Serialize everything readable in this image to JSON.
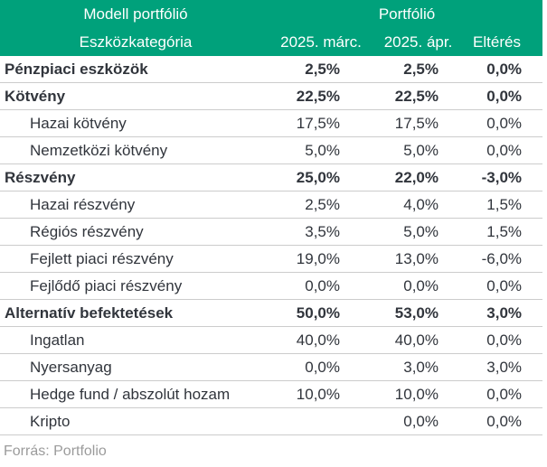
{
  "chart_data": {
    "type": "table",
    "title_left": "Modell portfólió",
    "title_right": "Portfólió",
    "columns": [
      "Eszközkategória",
      "2025. márc.",
      "2025. ápr.",
      "Eltérés"
    ],
    "rows": [
      {
        "label": "Pénzpiaci eszközök",
        "bold": true,
        "indent": false,
        "values": [
          "2,5%",
          "2,5%",
          "0,0%"
        ]
      },
      {
        "label": "Kötvény",
        "bold": true,
        "indent": false,
        "values": [
          "22,5%",
          "22,5%",
          "0,0%"
        ]
      },
      {
        "label": "Hazai kötvény",
        "bold": false,
        "indent": true,
        "values": [
          "17,5%",
          "17,5%",
          "0,0%"
        ]
      },
      {
        "label": "Nemzetközi kötvény",
        "bold": false,
        "indent": true,
        "values": [
          "5,0%",
          "5,0%",
          "0,0%"
        ]
      },
      {
        "label": "Részvény",
        "bold": true,
        "indent": false,
        "values": [
          "25,0%",
          "22,0%",
          "-3,0%"
        ]
      },
      {
        "label": "Hazai részvény",
        "bold": false,
        "indent": true,
        "values": [
          "2,5%",
          "4,0%",
          "1,5%"
        ]
      },
      {
        "label": "Régiós részvény",
        "bold": false,
        "indent": true,
        "values": [
          "3,5%",
          "5,0%",
          "1,5%"
        ]
      },
      {
        "label": "Fejlett piaci részvény",
        "bold": false,
        "indent": true,
        "values": [
          "19,0%",
          "13,0%",
          "-6,0%"
        ]
      },
      {
        "label": "Fejlődő piaci részvény",
        "bold": false,
        "indent": true,
        "values": [
          "0,0%",
          "0,0%",
          "0,0%"
        ]
      },
      {
        "label": "Alternatív befektetések",
        "bold": true,
        "indent": false,
        "values": [
          "50,0%",
          "53,0%",
          "3,0%"
        ]
      },
      {
        "label": "Ingatlan",
        "bold": false,
        "indent": true,
        "values": [
          "40,0%",
          "40,0%",
          "0,0%"
        ]
      },
      {
        "label": "Nyersanyag",
        "bold": false,
        "indent": true,
        "values": [
          "0,0%",
          "3,0%",
          "3,0%"
        ]
      },
      {
        "label": "Hedge fund / abszolút hozam",
        "bold": false,
        "indent": true,
        "values": [
          "10,0%",
          "10,0%",
          "0,0%"
        ]
      },
      {
        "label": "Kripto",
        "bold": false,
        "indent": true,
        "values": [
          "",
          "0,0%",
          "0,0%"
        ]
      }
    ],
    "source": "Forrás: Portfolio"
  },
  "colors": {
    "header_bg": "#00a17b",
    "header_text": "#ffffff",
    "body_text": "#31353c",
    "row_border": "#cccccc",
    "source_text": "#9b9b9b"
  }
}
